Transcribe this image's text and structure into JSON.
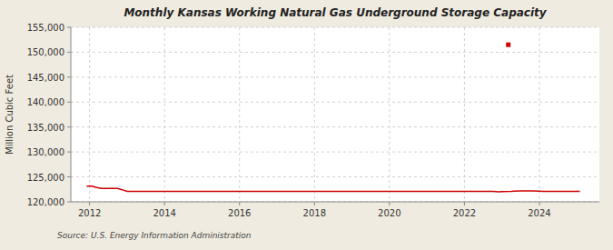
{
  "chart_data": {
    "type": "line",
    "title": "Monthly Kansas Working Natural Gas Underground Storage Capacity",
    "ylabel": "Million Cubic Feet",
    "annotations": [
      "Source: U.S. Energy Information Administration"
    ],
    "xlim": [
      2011.5,
      2025.6
    ],
    "xticks": [
      2012,
      2014,
      2016,
      2018,
      2020,
      2022,
      2024
    ],
    "ylim": [
      120000,
      155000
    ],
    "yticks": [
      {
        "value": 120000,
        "label": "120,000"
      },
      {
        "value": 125000,
        "label": "125,000"
      },
      {
        "value": 130000,
        "label": "130,000"
      },
      {
        "value": 135000,
        "label": "135,000"
      },
      {
        "value": 140000,
        "label": "140,000"
      },
      {
        "value": 145000,
        "label": "145,000"
      },
      {
        "value": 150000,
        "label": "150,000"
      },
      {
        "value": 155000,
        "label": "155,000"
      }
    ],
    "grid": true,
    "series": [
      {
        "color": "#cc0000",
        "line_style": "solid",
        "x": [
          2011.92,
          2012.0,
          2012.08,
          2012.17,
          2012.25,
          2012.33,
          2012.42,
          2012.5,
          2012.58,
          2012.67,
          2012.75,
          2012.83,
          2012.92,
          2013.0,
          2013.17,
          2013.33,
          2013.5,
          2013.67,
          2013.83,
          2014.0,
          2014.5,
          2015.0,
          2015.5,
          2016.0,
          2016.5,
          2017.0,
          2017.5,
          2018.0,
          2018.5,
          2019.0,
          2019.5,
          2020.0,
          2020.5,
          2021.0,
          2021.5,
          2022.0,
          2022.5,
          2022.75,
          2022.92,
          2023.0,
          2023.25,
          2023.33,
          2023.5,
          2023.67,
          2023.83,
          2024.0,
          2024.08,
          2024.17,
          2024.33,
          2024.5,
          2024.67,
          2024.83,
          2025.0,
          2025.08
        ],
        "values": [
          123100,
          123200,
          123100,
          122900,
          122800,
          122700,
          122700,
          122700,
          122700,
          122700,
          122700,
          122500,
          122300,
          122100,
          122100,
          122100,
          122100,
          122100,
          122100,
          122100,
          122100,
          122100,
          122100,
          122100,
          122100,
          122100,
          122100,
          122100,
          122100,
          122100,
          122100,
          122100,
          122100,
          122100,
          122100,
          122100,
          122100,
          122100,
          122000,
          122050,
          122100,
          122150,
          122200,
          122200,
          122200,
          122150,
          122100,
          122100,
          122100,
          122100,
          122100,
          122100,
          122100,
          122100
        ]
      },
      {
        "color": "#cc0000",
        "line_style": "none",
        "marker": "square",
        "x": [
          2023.17
        ],
        "values": [
          151500
        ]
      }
    ]
  }
}
